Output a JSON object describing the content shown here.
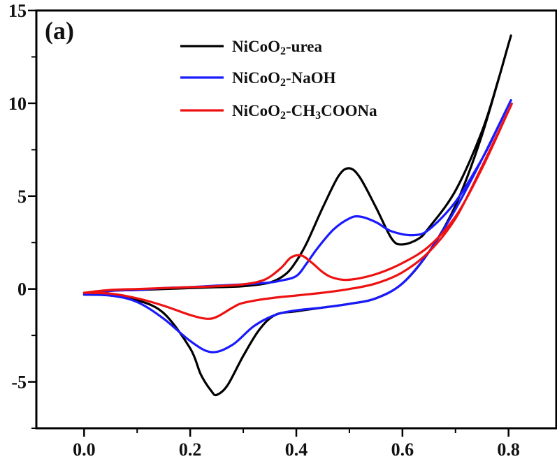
{
  "chart_data": {
    "type": "line",
    "panel_label": "(a)",
    "xlabel": "",
    "ylabel": "",
    "xlim": [
      -0.09,
      0.89
    ],
    "ylim": [
      -7.5,
      15
    ],
    "x_ticks": [
      "0.0",
      "0.2",
      "0.4",
      "0.6",
      "0.8"
    ],
    "x_tick_values": [
      0.0,
      0.2,
      0.4,
      0.6,
      0.8
    ],
    "y_ticks": [
      "-5",
      "0",
      "5",
      "10",
      "15"
    ],
    "y_tick_values": [
      -5,
      0,
      5,
      10,
      15
    ],
    "legend_position": "top-center",
    "legend": [
      {
        "prefix": "NiCoO",
        "sub1": "2",
        "mid": "-urea",
        "sub2": "",
        "suffix": "",
        "color": "#000000"
      },
      {
        "prefix": "NiCoO",
        "sub1": "2",
        "mid": "-NaOH",
        "sub2": "",
        "suffix": "",
        "color": "#1a1aff"
      },
      {
        "prefix": "NiCoO",
        "sub1": "2",
        "mid": "-CH",
        "sub2": "3",
        "suffix": "COONa",
        "color": "#ee1111"
      }
    ],
    "series": [
      {
        "name": "NiCoO2-urea",
        "color": "#000000",
        "x": [
          0.0,
          0.05,
          0.1,
          0.15,
          0.2,
          0.22,
          0.24,
          0.25,
          0.27,
          0.3,
          0.33,
          0.36,
          0.4,
          0.45,
          0.5,
          0.55,
          0.6,
          0.65,
          0.7,
          0.75,
          0.8,
          0.8,
          0.78,
          0.75,
          0.7,
          0.65,
          0.63,
          0.6,
          0.58,
          0.55,
          0.52,
          0.5,
          0.48,
          0.45,
          0.42,
          0.4,
          0.38,
          0.35,
          0.3,
          0.25,
          0.2,
          0.15,
          0.1,
          0.05,
          0.0
        ],
        "y": [
          -0.3,
          -0.35,
          -0.6,
          -1.3,
          -3.2,
          -4.6,
          -5.5,
          -5.7,
          -5.2,
          -3.6,
          -2.2,
          -1.4,
          -1.2,
          -1.0,
          -0.8,
          -0.5,
          0.3,
          2.0,
          4.5,
          8.3,
          13.2,
          13.2,
          11.2,
          8.5,
          5.3,
          3.3,
          2.7,
          2.4,
          2.7,
          4.4,
          6.0,
          6.5,
          6.1,
          4.4,
          2.5,
          1.5,
          0.8,
          0.35,
          0.15,
          0.1,
          0.05,
          0.0,
          -0.05,
          -0.1,
          -0.3
        ]
      },
      {
        "name": "NiCoO2-NaOH",
        "color": "#1a1aff",
        "x": [
          0.0,
          0.05,
          0.1,
          0.15,
          0.2,
          0.24,
          0.28,
          0.32,
          0.36,
          0.4,
          0.45,
          0.5,
          0.55,
          0.6,
          0.65,
          0.7,
          0.75,
          0.8,
          0.8,
          0.78,
          0.75,
          0.7,
          0.65,
          0.62,
          0.58,
          0.55,
          0.52,
          0.5,
          0.47,
          0.44,
          0.42,
          0.4,
          0.37,
          0.35,
          0.3,
          0.25,
          0.2,
          0.15,
          0.1,
          0.05,
          0.0
        ],
        "y": [
          -0.3,
          -0.35,
          -0.7,
          -1.6,
          -2.8,
          -3.4,
          -3.0,
          -2.0,
          -1.4,
          -1.15,
          -1.0,
          -0.8,
          -0.5,
          0.3,
          2.0,
          4.3,
          7.0,
          9.9,
          9.9,
          8.7,
          7.0,
          4.7,
          3.2,
          2.9,
          3.1,
          3.6,
          3.9,
          3.8,
          3.2,
          2.2,
          1.4,
          0.7,
          0.45,
          0.35,
          0.25,
          0.18,
          0.1,
          0.05,
          -0.05,
          -0.1,
          -0.3
        ]
      },
      {
        "name": "NiCoO2-CH3COONa",
        "color": "#ee1111",
        "x": [
          0.0,
          0.05,
          0.1,
          0.15,
          0.2,
          0.23,
          0.25,
          0.28,
          0.3,
          0.35,
          0.4,
          0.45,
          0.5,
          0.55,
          0.6,
          0.65,
          0.7,
          0.75,
          0.8,
          0.8,
          0.75,
          0.7,
          0.65,
          0.6,
          0.55,
          0.5,
          0.47,
          0.45,
          0.43,
          0.41,
          0.39,
          0.37,
          0.34,
          0.3,
          0.25,
          0.2,
          0.15,
          0.1,
          0.05,
          0.0
        ],
        "y": [
          -0.2,
          -0.25,
          -0.5,
          -0.9,
          -1.4,
          -1.6,
          -1.5,
          -1.0,
          -0.75,
          -0.5,
          -0.35,
          -0.2,
          0.0,
          0.3,
          0.9,
          2.0,
          3.8,
          6.6,
          9.6,
          9.6,
          6.5,
          3.9,
          2.3,
          1.4,
          0.8,
          0.5,
          0.6,
          0.9,
          1.4,
          1.8,
          1.7,
          1.1,
          0.5,
          0.25,
          0.15,
          0.1,
          0.05,
          0.0,
          -0.05,
          -0.2
        ]
      }
    ]
  }
}
